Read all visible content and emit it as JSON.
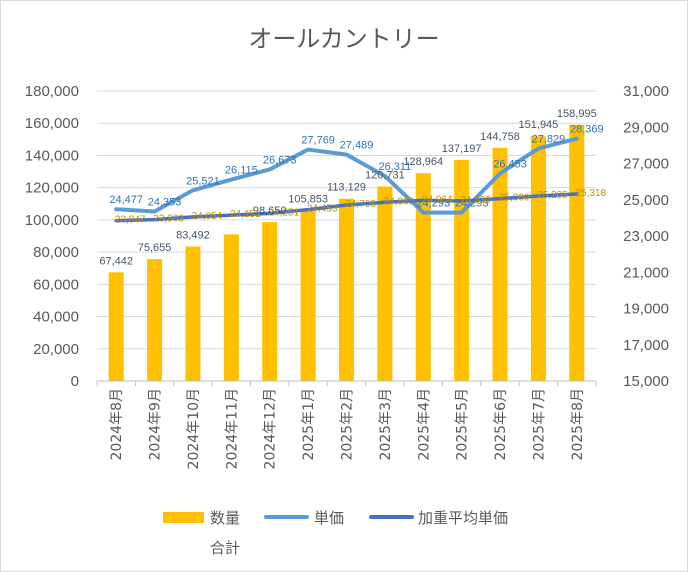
{
  "chart_data": {
    "type": "bar",
    "title": "オールカントリー",
    "categories": [
      "2024年8月",
      "2024年9月",
      "2024年10月",
      "2024年11月",
      "2024年12月",
      "2025年1月",
      "2025年2月",
      "2025年3月",
      "2025年4月",
      "2025年5月",
      "2025年6月",
      "2025年7月",
      "2025年8月"
    ],
    "y_left": {
      "min": 0,
      "max": 180000,
      "step": 20000,
      "ticks": [
        "0",
        "20,000",
        "40,000",
        "60,000",
        "80,000",
        "100,000",
        "120,000",
        "140,000",
        "160,000",
        "180,000"
      ]
    },
    "y_right": {
      "min": 15000,
      "max": 31000,
      "step": 2000,
      "ticks": [
        "15,000",
        "17,000",
        "19,000",
        "21,000",
        "23,000",
        "25,000",
        "27,000",
        "29,000",
        "31,000"
      ]
    },
    "series": [
      {
        "name": "数量合計",
        "name_lines": [
          "数量",
          "合計"
        ],
        "type": "bar",
        "axis": "left",
        "color": "#FFC000",
        "values": [
          67442,
          75655,
          83492,
          91000,
          98650,
          105853,
          113129,
          120731,
          128964,
          137197,
          144758,
          151945,
          158995
        ],
        "labels": [
          "67,442",
          "75,655",
          "83,492",
          "",
          "98,650",
          "105,853",
          "113,129",
          "120,731",
          "128,964",
          "137,197",
          "144,758",
          "151,945",
          "158,995"
        ]
      },
      {
        "name": "単価",
        "type": "line",
        "axis": "right",
        "color": "#5B9BD5",
        "values": [
          24477,
          24353,
          25521,
          26115,
          26673,
          27769,
          27489,
          26311,
          24293,
          24293,
          26453,
          27829,
          28369
        ],
        "labels": [
          "24,477",
          "24,353",
          "25,521",
          "26,115",
          "26,673",
          "27,769",
          "27,489",
          "26,311",
          "24,293",
          "24,293",
          "26,453",
          "27,829",
          "28,369"
        ]
      },
      {
        "name": "加重平均単価",
        "type": "line",
        "axis": "right",
        "color": "#4472C4",
        "values": [
          23847,
          23903,
          24054,
          24151,
          24251,
          24453,
          24708,
          24860,
          24964,
          24930,
          25060,
          25205,
          25318
        ],
        "labels": [
          "23,847",
          "23,903",
          "24,054",
          "24,151",
          "24,251",
          "24,453",
          "24,708",
          "24,860",
          "24,964",
          "24,930",
          "25,060",
          "25,205",
          "25,318"
        ]
      }
    ]
  }
}
